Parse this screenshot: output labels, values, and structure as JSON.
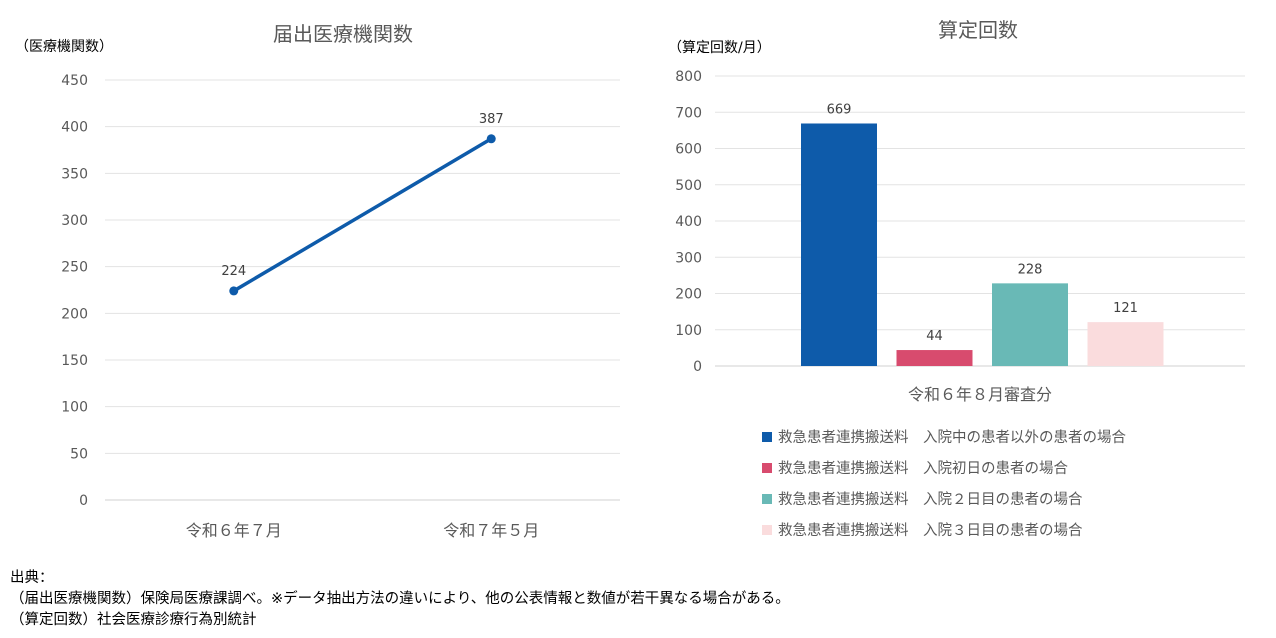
{
  "chart_data": [
    {
      "type": "line",
      "title": "届出医療機関数",
      "ylabel": "（医療機関数）",
      "categories": [
        "令和６年７月",
        "令和７年５月"
      ],
      "series": [
        {
          "values": [
            224,
            387
          ],
          "color": "#0E5BAA"
        }
      ],
      "ylim": [
        0,
        450
      ],
      "yticks": [
        0,
        50,
        100,
        150,
        200,
        250,
        300,
        350,
        400,
        450
      ],
      "grid": true,
      "data_labels": true
    },
    {
      "type": "bar",
      "title": "算定回数",
      "ylabel": "（算定回数/月）",
      "xlabel": "令和６年８月審査分",
      "ylim": [
        0,
        800
      ],
      "yticks": [
        0,
        100,
        200,
        300,
        400,
        500,
        600,
        700,
        800
      ],
      "grid": true,
      "data_labels": true,
      "legend_position": "bottom",
      "series": [
        {
          "name": "救急患者連携搬送料　入院中の患者以外の患者の場合",
          "value": 669,
          "color": "#0E5BAA"
        },
        {
          "name": "救急患者連携搬送料　入院初日の患者の場合",
          "value": 44,
          "color": "#D84B6E"
        },
        {
          "name": "救急患者連携搬送料　入院２日目の患者の場合",
          "value": 228,
          "color": "#69B9B6"
        },
        {
          "name": "救急患者連携搬送料　入院３日目の患者の場合",
          "value": 121,
          "color": "#FADCDD"
        }
      ]
    }
  ],
  "source": {
    "heading": "出典：",
    "line1": "（届出医療機関数）保険局医療課調べ。※データ抽出方法の違いにより、他の公表情報と数値が若干異なる場合がある。",
    "line2": "（算定回数）社会医療診療行為別統計"
  }
}
